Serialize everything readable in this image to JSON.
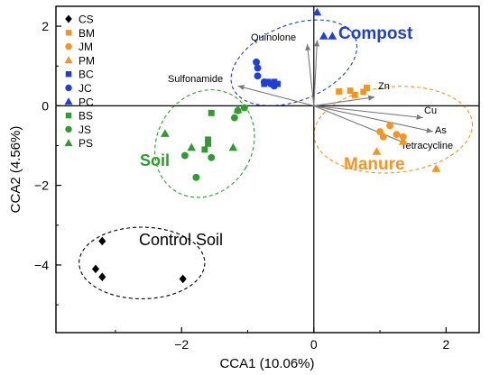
{
  "chart_data": {
    "type": "scatter",
    "title": "",
    "xlabel": "CCA1 (10.06%)",
    "ylabel": "CCA2 (4.56%)",
    "xlim": [
      -3.9,
      2.5
    ],
    "ylim": [
      -5.7,
      2.5
    ],
    "x_ticks": [
      -2,
      0,
      2
    ],
    "y_ticks": [
      -4,
      -2,
      0,
      2
    ],
    "grid": false,
    "legend": {
      "position": "top-left"
    },
    "series": [
      {
        "name": "CS",
        "marker": "diamond",
        "color": "#000000",
        "points": [
          [
            -3.2,
            -3.4
          ],
          [
            -3.3,
            -4.1
          ],
          [
            -3.2,
            -4.3
          ],
          [
            -1.98,
            -4.35
          ]
        ]
      },
      {
        "name": "BM",
        "marker": "square",
        "color": "#F7941D",
        "points": [
          [
            0.38,
            0.36
          ],
          [
            0.55,
            0.38
          ],
          [
            0.75,
            0.35
          ],
          [
            0.8,
            0.45
          ],
          [
            0.62,
            0.27
          ]
        ]
      },
      {
        "name": "JM",
        "marker": "circle",
        "color": "#F7941D",
        "points": [
          [
            1.0,
            -0.65
          ],
          [
            1.05,
            -0.78
          ],
          [
            1.15,
            -0.5
          ],
          [
            1.25,
            -0.72
          ],
          [
            1.35,
            -0.78
          ]
        ]
      },
      {
        "name": "PM",
        "marker": "triangle",
        "color": "#F7941D",
        "points": [
          [
            0.95,
            -1.15
          ],
          [
            1.35,
            -0.9
          ],
          [
            1.85,
            -1.58
          ]
        ]
      },
      {
        "name": "BC",
        "marker": "square",
        "color": "#1F3FD8",
        "points": [
          [
            -0.7,
            0.6
          ],
          [
            -0.55,
            0.55
          ],
          [
            -0.6,
            0.6
          ],
          [
            -0.75,
            0.55
          ]
        ]
      },
      {
        "name": "JC",
        "marker": "circle",
        "color": "#1F3FD8",
        "points": [
          [
            -0.87,
            1.1
          ],
          [
            -0.85,
            0.95
          ],
          [
            -0.85,
            0.75
          ],
          [
            -0.75,
            0.6
          ],
          [
            -0.65,
            0.55
          ],
          [
            -0.6,
            0.5
          ]
        ]
      },
      {
        "name": "PC",
        "marker": "triangle",
        "color": "#1F3FD8",
        "points": [
          [
            0.05,
            2.35
          ],
          [
            0.15,
            1.75
          ],
          [
            0.28,
            1.75
          ]
        ]
      },
      {
        "name": "BS",
        "marker": "square",
        "color": "#2E9C2E",
        "points": [
          [
            -1.55,
            -0.18
          ],
          [
            -1.6,
            -0.85
          ],
          [
            -1.6,
            -0.95
          ],
          [
            -1.65,
            -1.1
          ]
        ]
      },
      {
        "name": "JS",
        "marker": "circle",
        "color": "#2E9C2E",
        "points": [
          [
            -1.78,
            -1.8
          ],
          [
            -1.95,
            -1.25
          ],
          [
            -1.55,
            -1.3
          ],
          [
            -1.2,
            -0.3
          ],
          [
            -1.05,
            -0.05
          ],
          [
            -1.15,
            -0.12
          ]
        ]
      },
      {
        "name": "PS",
        "marker": "triangle",
        "color": "#2E9C2E",
        "points": [
          [
            -2.25,
            -0.7
          ],
          [
            -1.85,
            -1.05
          ],
          [
            -1.22,
            -1.05
          ],
          [
            -1.15,
            -0.1
          ]
        ]
      }
    ],
    "biplot_arrows": [
      {
        "label": "Quinolone",
        "end": [
          -0.1,
          1.55
        ]
      },
      {
        "label": "",
        "end": [
          0.05,
          1.65
        ]
      },
      {
        "label": "Sulfonamide",
        "end": [
          -1.15,
          0.5
        ]
      },
      {
        "label": "Zn",
        "end": [
          0.92,
          0.22
        ]
      },
      {
        "label": "Cu",
        "end": [
          1.65,
          -0.3
        ]
      },
      {
        "label": "As",
        "end": [
          1.8,
          -0.65
        ]
      },
      {
        "label": "Tetracycline",
        "end": [
          1.4,
          -0.95
        ]
      }
    ],
    "clusters": [
      {
        "label": "Compost",
        "color": "#1F3FD8",
        "cx": -0.3,
        "cy": 1.08,
        "rx": 1.0,
        "ry": 0.95,
        "angle": -22
      },
      {
        "label": "Manure",
        "color": "#F7941D",
        "cx": 1.2,
        "cy": -0.6,
        "rx": 1.2,
        "ry": 1.08,
        "angle": -5
      },
      {
        "label": "Soil",
        "color": "#2E9C2E",
        "cx": -1.65,
        "cy": -0.95,
        "rx": 0.72,
        "ry": 1.4,
        "angle": 30
      },
      {
        "label": "Control Soil",
        "color": "#000000",
        "cx": -2.6,
        "cy": -3.95,
        "rx": 0.95,
        "ry": 0.9,
        "angle": 0
      }
    ]
  }
}
